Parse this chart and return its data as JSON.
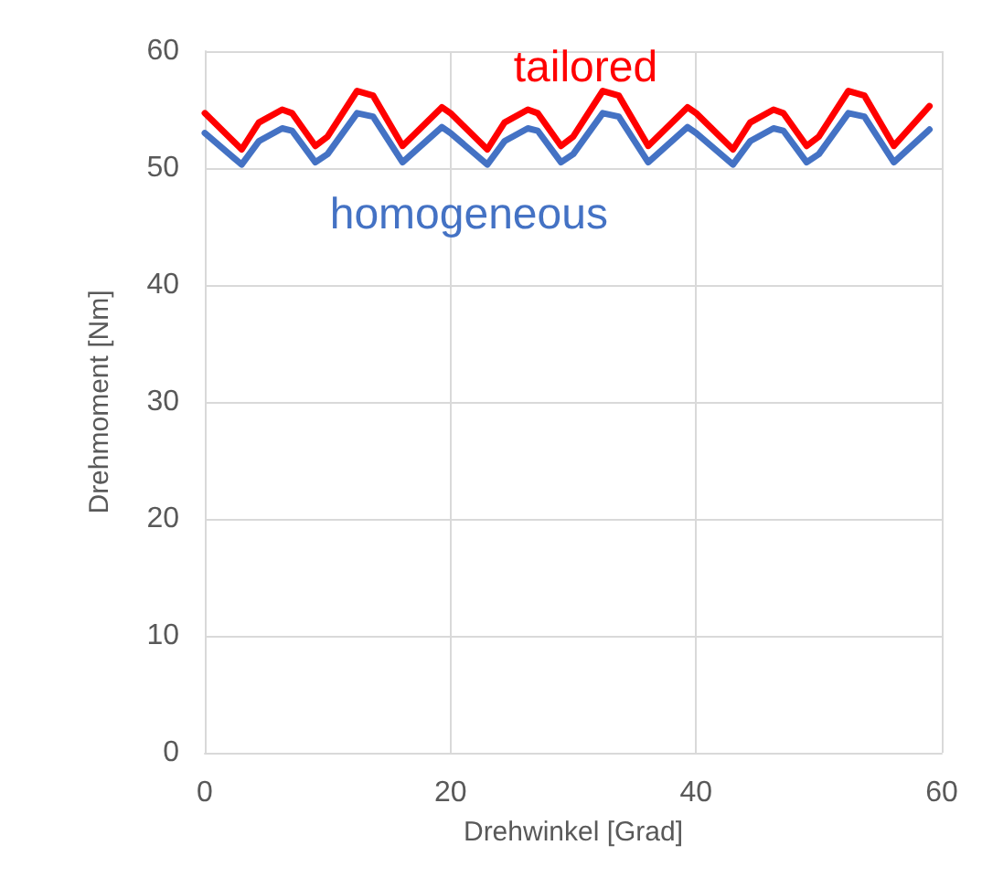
{
  "chart_data": {
    "type": "line",
    "xlabel": "Drehwinkel [Grad]",
    "ylabel": "Drehmoment [Nm]",
    "xlim": [
      0,
      60
    ],
    "xticks": [
      0,
      20,
      40,
      60
    ],
    "ylim": [
      0,
      60
    ],
    "yticks": [
      0,
      10,
      20,
      30,
      40,
      50,
      60
    ],
    "grid": true,
    "legend": false,
    "marker": "none",
    "line_style": "solid",
    "series": [
      {
        "name": "tailored",
        "color": "#ff0000",
        "x": [
          0,
          3,
          4.4,
          6.3,
          7.1,
          9,
          10,
          12.4,
          13.7,
          16.1,
          19.3,
          20,
          23,
          24.4,
          26.3,
          27.1,
          29,
          30,
          32.4,
          33.7,
          36.1,
          39.3,
          40,
          43,
          44.4,
          46.3,
          47.1,
          49,
          50,
          52.4,
          53.7,
          56.1,
          59
        ],
        "values": [
          54.7,
          51.6,
          53.9,
          55.0,
          54.7,
          51.9,
          52.7,
          56.6,
          56.2,
          51.9,
          55.2,
          54.7,
          51.6,
          53.9,
          55.0,
          54.7,
          51.9,
          52.7,
          56.6,
          56.2,
          51.9,
          55.2,
          54.7,
          51.6,
          53.9,
          55.0,
          54.7,
          51.9,
          52.7,
          56.6,
          56.2,
          51.9,
          55.3
        ]
      },
      {
        "name": "homogeneous",
        "color": "#4472c4",
        "x": [
          0,
          3,
          4.4,
          6.3,
          7.1,
          9,
          10,
          12.4,
          13.7,
          16.1,
          19.3,
          20,
          23,
          24.4,
          26.3,
          27.1,
          29,
          30,
          32.4,
          33.7,
          36.1,
          39.3,
          40,
          43,
          44.4,
          46.3,
          47.1,
          49,
          50,
          52.4,
          53.7,
          56.1,
          59
        ],
        "values": [
          53.0,
          50.3,
          52.3,
          53.4,
          53.2,
          50.5,
          51.2,
          54.7,
          54.4,
          50.5,
          53.5,
          53.0,
          50.3,
          52.3,
          53.4,
          53.2,
          50.5,
          51.2,
          54.7,
          54.4,
          50.5,
          53.5,
          53.0,
          50.3,
          52.3,
          53.4,
          53.2,
          50.5,
          51.2,
          54.7,
          54.4,
          50.5,
          53.3
        ]
      }
    ]
  }
}
